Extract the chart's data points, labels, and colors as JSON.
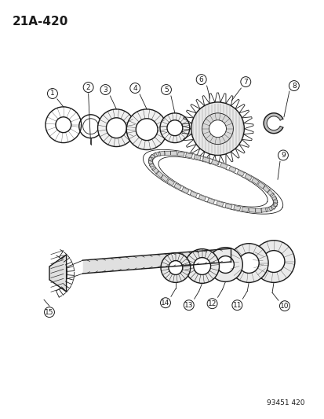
{
  "page_code": "21A-420",
  "footer_code": "93451 420",
  "bg_color": "#ffffff",
  "line_color": "#1a1a1a",
  "title_fontsize": 11,
  "label_fontsize": 7,
  "fig_w": 4.14,
  "fig_h": 5.33,
  "dpi": 100
}
